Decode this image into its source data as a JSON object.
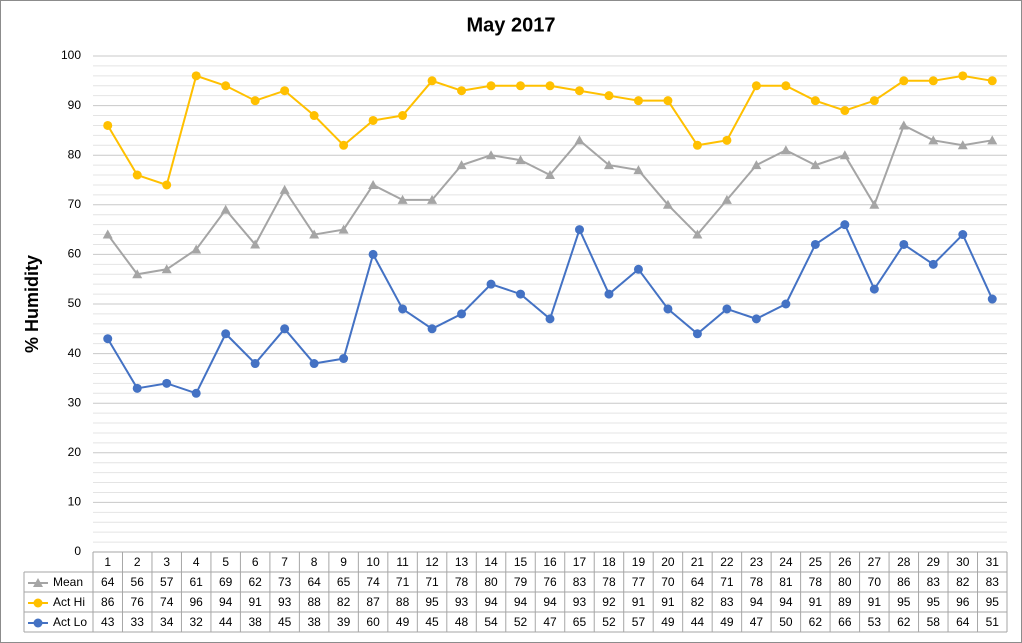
{
  "chart_data": {
    "type": "line",
    "title": "May 2017",
    "y_label": "% Humidity",
    "categories": [
      1,
      2,
      3,
      4,
      5,
      6,
      7,
      8,
      9,
      10,
      11,
      12,
      13,
      14,
      15,
      16,
      17,
      18,
      19,
      20,
      21,
      22,
      23,
      24,
      25,
      26,
      27,
      28,
      29,
      30,
      31
    ],
    "series": [
      {
        "name": "Mean",
        "color": "#a5a5a5",
        "marker": "triangle",
        "values": [
          64,
          56,
          57,
          61,
          69,
          62,
          73,
          64,
          65,
          74,
          71,
          71,
          78,
          80,
          79,
          76,
          83,
          78,
          77,
          70,
          64,
          71,
          78,
          81,
          78,
          80,
          70,
          86,
          83,
          82,
          83
        ]
      },
      {
        "name": "Act Hi",
        "color": "#ffc000",
        "marker": "circle",
        "values": [
          86,
          76,
          74,
          96,
          94,
          91,
          93,
          88,
          82,
          87,
          88,
          95,
          93,
          94,
          94,
          94,
          93,
          92,
          91,
          91,
          82,
          83,
          94,
          94,
          91,
          89,
          91,
          95,
          95,
          96,
          95
        ]
      },
      {
        "name": "Act Lo",
        "color": "#4472c4",
        "marker": "circle",
        "values": [
          43,
          33,
          34,
          32,
          44,
          38,
          45,
          38,
          39,
          60,
          49,
          45,
          48,
          54,
          52,
          47,
          65,
          52,
          57,
          49,
          44,
          49,
          47,
          50,
          62,
          66,
          53,
          62,
          58,
          64,
          51
        ]
      }
    ],
    "ylim": [
      0,
      100
    ],
    "yticks": [
      0,
      10,
      20,
      30,
      40,
      50,
      60,
      70,
      80,
      90,
      100
    ],
    "minor_yticks": [
      2,
      4,
      6,
      8,
      12,
      14,
      16,
      18,
      22,
      24,
      26,
      28,
      32,
      34,
      36,
      38,
      42,
      44,
      46,
      48,
      52,
      54,
      56,
      58,
      62,
      64,
      66,
      68,
      72,
      74,
      76,
      78,
      82,
      84,
      86,
      88,
      92,
      94,
      96,
      98
    ],
    "grid": true,
    "data_table": true
  }
}
